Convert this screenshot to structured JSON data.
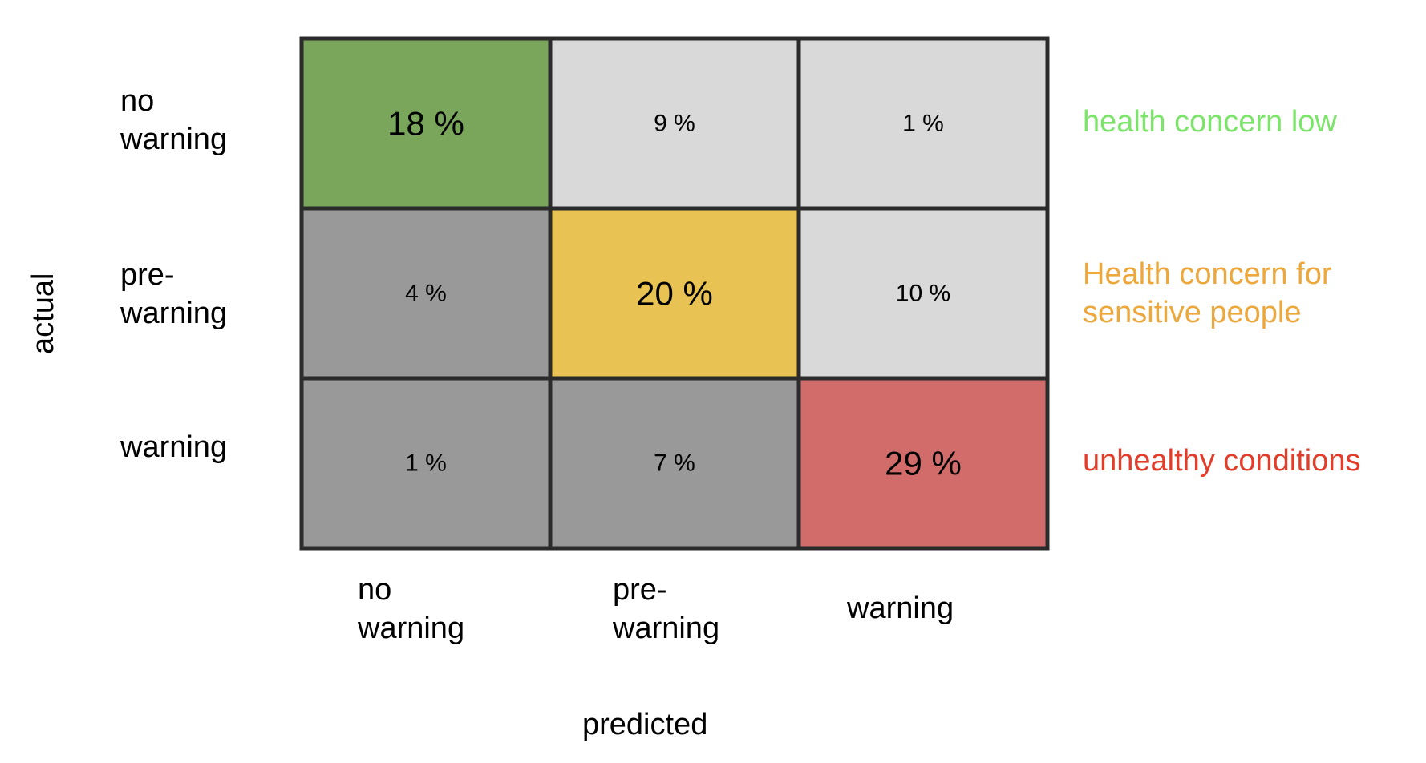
{
  "chart_data": {
    "type": "heatmap",
    "xlabel": "predicted",
    "ylabel": "actual",
    "x_categories": [
      {
        "line1": "no",
        "line2": "warning"
      },
      {
        "line1": "pre-",
        "line2": "warning"
      },
      {
        "line1": "",
        "line2": "warning"
      }
    ],
    "y_categories": [
      {
        "line1": "no",
        "line2": "warning"
      },
      {
        "line1": "pre-",
        "line2": "warning"
      },
      {
        "line1": "",
        "line2": "warning"
      }
    ],
    "unit": "%",
    "values": [
      [
        18,
        9,
        1
      ],
      [
        4,
        20,
        10
      ],
      [
        1,
        7,
        29
      ]
    ],
    "cell_text": [
      [
        "18 %",
        "9 %",
        "1 %"
      ],
      [
        "4 %",
        "20 %",
        "10 %"
      ],
      [
        "1 %",
        "7 %",
        "29 %"
      ]
    ],
    "cell_colors": [
      [
        "#79a65b",
        "#d9d9d9",
        "#d9d9d9"
      ],
      [
        "#999999",
        "#e8c253",
        "#d9d9d9"
      ],
      [
        "#999999",
        "#999999",
        "#d26c6b"
      ]
    ],
    "annotations": [
      {
        "lines": [
          "health concern low"
        ],
        "color": "#7de46b"
      },
      {
        "lines": [
          "Health concern for",
          "sensitive people"
        ],
        "color": "#eca73d"
      },
      {
        "lines": [
          "unhealthy conditions"
        ],
        "color": "#e23d2a"
      }
    ]
  }
}
